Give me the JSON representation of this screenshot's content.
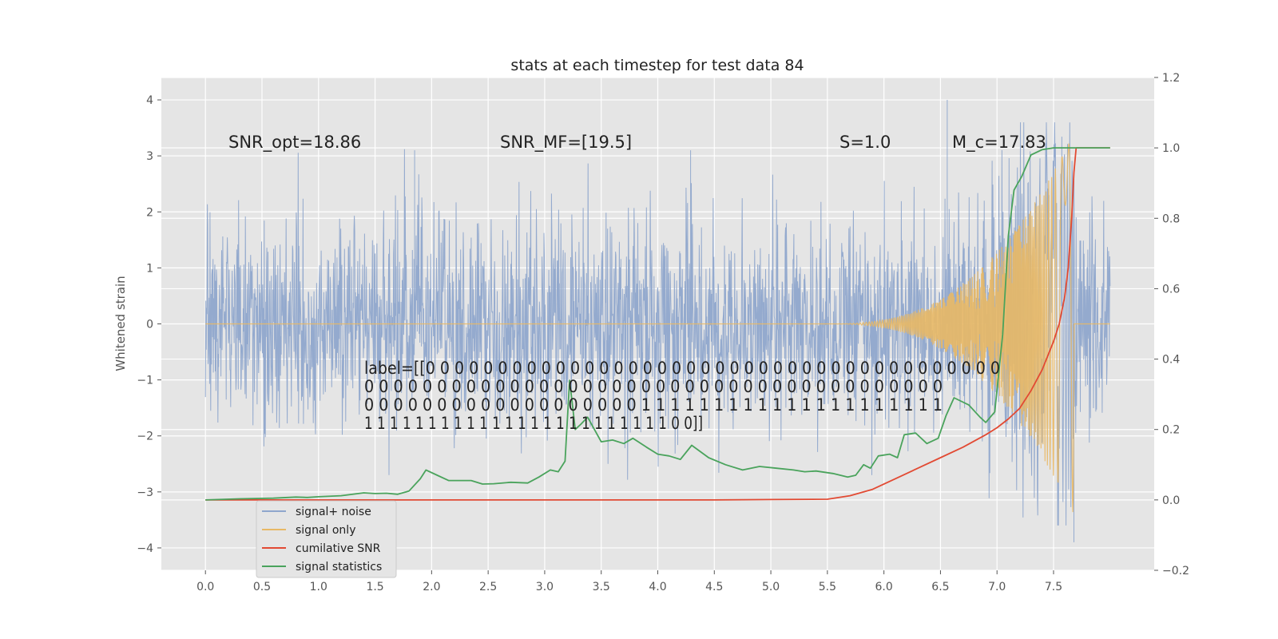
{
  "chart_data": {
    "type": "line",
    "title": "stats at each timestep for test data 84",
    "ylabel": "Whitened strain",
    "xlabel": "",
    "xlim": [
      -0.39,
      8.39
    ],
    "ylim": [
      -4.4,
      4.4
    ],
    "y2lim": [
      -0.2,
      1.2
    ],
    "xticks": [
      "0.0",
      "0.5",
      "1.0",
      "1.5",
      "2.0",
      "2.5",
      "3.0",
      "3.5",
      "4.0",
      "4.5",
      "5.0",
      "5.5",
      "6.0",
      "6.5",
      "7.0",
      "7.5"
    ],
    "yticks": [
      "4",
      "3",
      "2",
      "1",
      "0",
      "−1",
      "−2",
      "−3",
      "−4"
    ],
    "y2ticks": [
      "1.2",
      "1.0",
      "0.8",
      "0.6",
      "0.4",
      "0.2",
      "0.0",
      "−0.2"
    ],
    "grid": true,
    "legend_position": "lower-left",
    "legend": [
      "signal+ noise",
      "signal only",
      "cumilative SNR",
      "signal statistics"
    ],
    "colors": {
      "noise": "#8fa6cc",
      "signal": "#e8b865",
      "cumsnr": "#e24a33",
      "stats": "#4aa35c",
      "axes_bg": "#e5e5e5"
    },
    "annotations": {
      "snr_opt": "SNR_opt=18.86",
      "snr_mf": "SNR_MF=[19.5]",
      "spin": "S=1.0",
      "chirp_mass": "M_c=17.83",
      "label_lines": [
        "label=[[0 0 0 0 0 0 0 0 0 0 0 0 0 0 0 0 0 0 0 0 0 0 0 0 0 0 0 0 0 0 0 0 0 0 0 0 0 0 0 0",
        " 0 0 0 0 0 0 0 0 0 0 0 0 0 0 0 0 0 0 0 0 0 0 0 0 0 0 0 0 0 0 0 0 0 0 0 0 0 0 0 0",
        " 0 0 0 0 0 0 0 0 0 0 0 0 0 0 0 0 0 0 0 1 1 1 1 1 1 1 1 1 1 1 1 1 1 1 1 1 1 1 1 1",
        " 1 1 1 1 1 1 1 1 1 1 1 1 1 1 1 1 1 1 1 1 1 1 1 1 0 0]]"
      ]
    },
    "series": [
      {
        "name": "signal+ noise",
        "description_type": "noise",
        "x_range": [
          0.0,
          8.0
        ],
        "typical_range": [
          -2.0,
          2.0
        ],
        "notable_peaks": [
          [
            6.56,
            4.0
          ],
          [
            7.68,
            -3.9
          ],
          [
            4.29,
            3.1
          ],
          [
            1.85,
            3.1
          ]
        ]
      },
      {
        "name": "signal only",
        "description_type": "chirp",
        "x_range": [
          0.0,
          7.7
        ],
        "onset": 5.5,
        "merger": 7.68,
        "peak_amplitude": 3.4
      },
      {
        "name": "cumilative SNR",
        "x": [
          0.0,
          0.5,
          1.0,
          1.5,
          2.0,
          2.5,
          3.0,
          3.5,
          4.0,
          4.5,
          5.0,
          5.5,
          5.7,
          5.9,
          6.1,
          6.3,
          6.5,
          6.7,
          6.9,
          7.0,
          7.1,
          7.2,
          7.3,
          7.4,
          7.5,
          7.55,
          7.6,
          7.63,
          7.66,
          7.68,
          7.7,
          8.0
        ],
        "y": [
          0.0,
          0.0,
          0.0,
          0.0,
          0.0,
          0.0,
          0.0,
          0.0,
          0.0,
          0.0,
          0.001,
          0.002,
          0.012,
          0.03,
          0.06,
          0.09,
          0.12,
          0.15,
          0.185,
          0.205,
          0.23,
          0.26,
          0.31,
          0.37,
          0.45,
          0.5,
          0.58,
          0.66,
          0.8,
          0.93,
          1.0,
          1.0
        ]
      },
      {
        "name": "signal statistics",
        "x": [
          0.0,
          0.3,
          0.6,
          0.8,
          0.9,
          1.0,
          1.2,
          1.4,
          1.5,
          1.6,
          1.7,
          1.8,
          1.9,
          1.95,
          2.05,
          2.15,
          2.35,
          2.45,
          2.55,
          2.7,
          2.85,
          2.95,
          3.05,
          3.12,
          3.18,
          3.22,
          3.27,
          3.32,
          3.38,
          3.5,
          3.6,
          3.7,
          3.78,
          3.9,
          4.0,
          4.1,
          4.2,
          4.3,
          4.45,
          4.6,
          4.75,
          4.9,
          5.05,
          5.2,
          5.3,
          5.4,
          5.55,
          5.68,
          5.75,
          5.82,
          5.88,
          5.95,
          6.05,
          6.12,
          6.18,
          6.28,
          6.38,
          6.48,
          6.55,
          6.62,
          6.75,
          6.85,
          6.9,
          6.98,
          7.05,
          7.1,
          7.15,
          7.22,
          7.3,
          7.4,
          7.5,
          7.7,
          8.0
        ],
        "y": [
          0.0,
          0.003,
          0.005,
          0.008,
          0.007,
          0.009,
          0.012,
          0.02,
          0.018,
          0.019,
          0.016,
          0.025,
          0.06,
          0.085,
          0.07,
          0.055,
          0.055,
          0.045,
          0.046,
          0.05,
          0.048,
          0.065,
          0.085,
          0.08,
          0.11,
          0.34,
          0.2,
          0.215,
          0.235,
          0.165,
          0.17,
          0.16,
          0.175,
          0.15,
          0.13,
          0.125,
          0.115,
          0.155,
          0.12,
          0.1,
          0.085,
          0.095,
          0.09,
          0.085,
          0.08,
          0.082,
          0.075,
          0.065,
          0.07,
          0.1,
          0.09,
          0.125,
          0.13,
          0.12,
          0.185,
          0.19,
          0.16,
          0.175,
          0.24,
          0.29,
          0.27,
          0.235,
          0.22,
          0.25,
          0.47,
          0.75,
          0.88,
          0.92,
          0.98,
          0.995,
          1.0,
          1.0,
          1.0
        ]
      }
    ]
  }
}
